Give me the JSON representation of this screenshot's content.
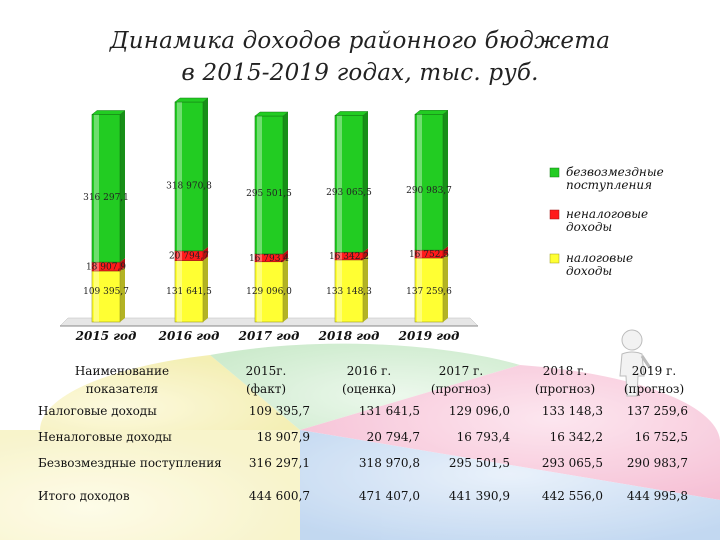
{
  "title_line1": "Динамика доходов районного бюджета",
  "title_line2": "в 2015-2019 годах, тыс. руб.",
  "colors": {
    "green": "#22cc22",
    "red": "#ff1a1a",
    "yellow": "#ffff33",
    "pie_green": "#8fd28f",
    "pie_yellow": "#f0e87a",
    "pie_pink": "#f08ab0",
    "pie_blue": "#8fb8e8"
  },
  "chart_data": {
    "type": "bar",
    "stacked": true,
    "categories": [
      "2015 год",
      "2016 год",
      "2017 год",
      "2018 год",
      "2019 год"
    ],
    "series": [
      {
        "name": "налоговые доходы",
        "color": "#ffff33",
        "values": [
          109395.7,
          131641.5,
          129096.0,
          133148.3,
          137259.6
        ],
        "labels": [
          "109 395,7",
          "131 641,5",
          "129 096,0",
          "133 148,3",
          "137 259,6"
        ]
      },
      {
        "name": "неналоговые доходы",
        "color": "#ff1a1a",
        "values": [
          18907.9,
          20794.7,
          16793.4,
          16342.2,
          16752.5
        ],
        "labels": [
          "18 907,9",
          "20 794,7",
          "16 793,4",
          "16 342,2",
          "16 752,5"
        ]
      },
      {
        "name": "безвозмездные поступления",
        "color": "#22cc22",
        "values": [
          316297.1,
          318970.8,
          295501.5,
          293065.5,
          290983.7
        ],
        "labels": [
          "316 297,1",
          "318 970,8",
          "295 501,5",
          "293 065,5",
          "290 983,7"
        ]
      }
    ],
    "legend": [
      "безвозмездные поступления",
      "неналоговые доходы",
      "налоговые доходы"
    ],
    "legend_position": "right",
    "grid": false
  },
  "table": {
    "headers": [
      {
        "line1": "Наименование",
        "line2": "показателя"
      },
      {
        "line1": "2015г.",
        "line2": "(факт)"
      },
      {
        "line1": "2016 г.",
        "line2": "(оценка)"
      },
      {
        "line1": "2017 г.",
        "line2": "(прогноз)"
      },
      {
        "line1": "2018 г.",
        "line2": "(прогноз)"
      },
      {
        "line1": "2019 г.",
        "line2": "(прогноз)"
      }
    ],
    "rows": [
      {
        "label": "Налоговые доходы",
        "values": [
          "109 395,7",
          "131 641,5",
          "129 096,0",
          "133 148,3",
          "137 259,6"
        ]
      },
      {
        "label": "Неналоговые доходы",
        "values": [
          "18 907,9",
          "20 794,7",
          "16 793,4",
          "16 342,2",
          "16 752,5"
        ]
      },
      {
        "label": "Безвозмездные поступления",
        "values": [
          "316 297,1",
          "318 970,8",
          "295 501,5",
          "293 065,5",
          "290 983,7"
        ]
      },
      {
        "label": "Итого доходов",
        "values": [
          "444 600,7",
          "471 407,0",
          "441 390,9",
          "442 556,0",
          "444 995,8"
        ]
      }
    ]
  }
}
